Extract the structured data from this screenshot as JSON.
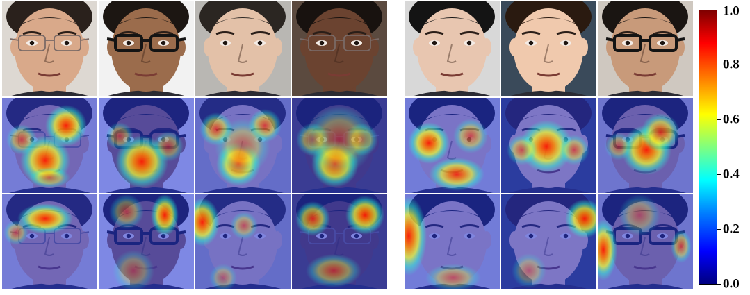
{
  "colorbar": {
    "ticks": [
      "0.0",
      "0.2",
      "0.4",
      "0.6",
      "0.8",
      "1.0"
    ],
    "colors": [
      "#00007f",
      "#0000ff",
      "#007fff",
      "#00ffff",
      "#7fff7f",
      "#ffff00",
      "#ff7f00",
      "#ff0000",
      "#7f0000"
    ]
  },
  "left_panel": {
    "subjects": [
      {
        "skin": "#d9a98a",
        "hair": "#2a211c",
        "glasses": "thin",
        "bg": "#ddd8d2"
      },
      {
        "skin": "#9b6c4c",
        "hair": "#1c1612",
        "glasses": "thick",
        "bg": "#f2f2f2"
      },
      {
        "skin": "#e3c1a8",
        "hair": "#2b2622",
        "glasses": "none",
        "bg": "#b9b7b3"
      },
      {
        "skin": "#6b4330",
        "hair": "#18120f",
        "glasses": "thin",
        "bg": "#5b4a3f"
      }
    ],
    "rows": [
      "faces",
      "attention-map-a",
      "attention-map-b"
    ]
  },
  "right_panel": {
    "subjects": [
      {
        "skin": "#e8c6b0",
        "hair": "#141414",
        "glasses": "none",
        "bg": "#d8d8d8"
      },
      {
        "skin": "#f0c9ad",
        "hair": "#2a1a10",
        "glasses": "none",
        "bg": "#3a4a5a"
      },
      {
        "skin": "#c89a7a",
        "hair": "#1a1512",
        "glasses": "thick",
        "bg": "#cfc8c0"
      }
    ],
    "rows": [
      "faces",
      "attention-map-a",
      "attention-map-b"
    ]
  }
}
